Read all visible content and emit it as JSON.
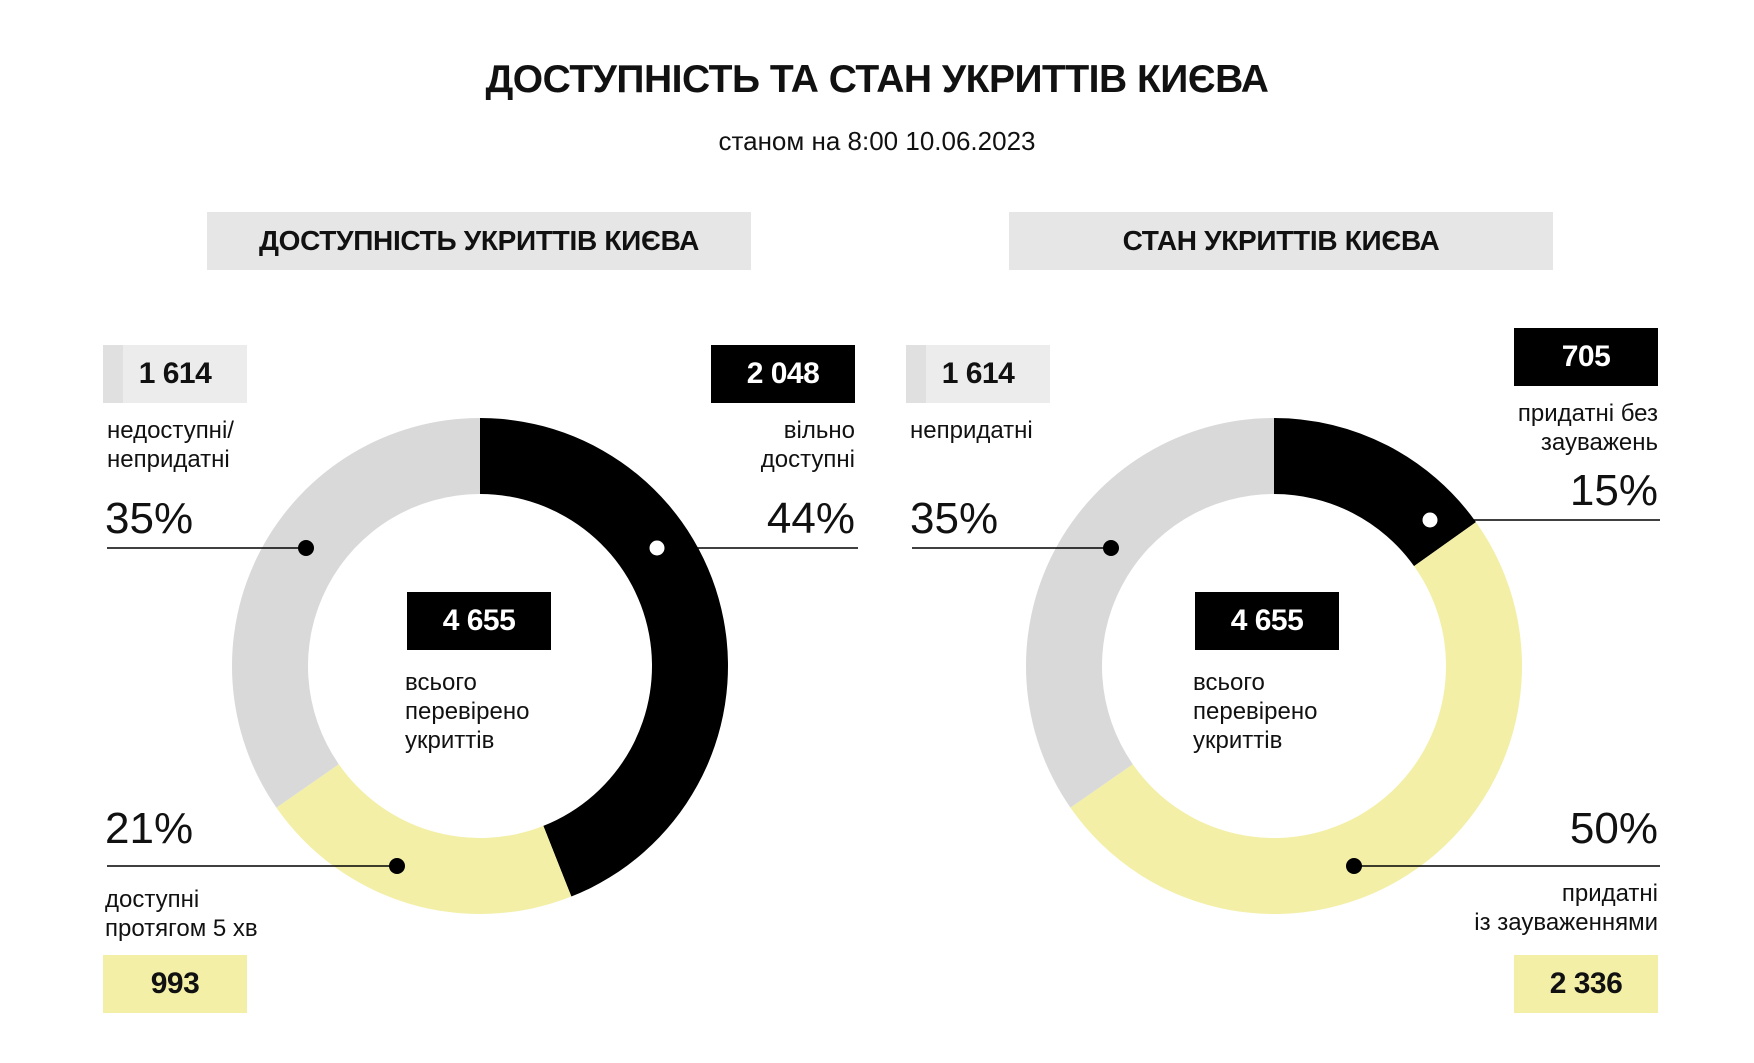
{
  "title": "ДОСТУПНІСТЬ ТА СТАН УКРИТТІВ КИЄВА",
  "subtitle": "станом на 8:00 10.06.2023",
  "colors": {
    "black": "#000000",
    "grey": "#d9d9d9",
    "yellow": "#f3efa7",
    "panel_bg": "#e6e6e6"
  },
  "chart_data": [
    {
      "type": "pie",
      "title": "ДОСТУПНІСТЬ УКРИТТІВ КИЄВА",
      "total": 4655,
      "total_label": "4 655",
      "center_text": "всього\nперевірено\nукриттів",
      "slices": [
        {
          "label": "вільно\nдоступні",
          "value": 2048,
          "value_label": "2 048",
          "percent": 44,
          "percent_label": "44%",
          "color": "#000000"
        },
        {
          "label": "доступні\nпротягом 5 хв",
          "value": 993,
          "value_label": "993",
          "percent": 21,
          "percent_label": "21%",
          "color": "#f3efa7"
        },
        {
          "label": "недоступні/\nнепридатні",
          "value": 1614,
          "value_label": "1 614",
          "percent": 35,
          "percent_label": "35%",
          "color": "#d9d9d9"
        }
      ]
    },
    {
      "type": "pie",
      "title": "СТАН УКРИТТІВ КИЄВА",
      "total": 4655,
      "total_label": "4 655",
      "center_text": "всього\nперевірено\nукриттів",
      "slices": [
        {
          "label": "придатні без\nзауважень",
          "value": 705,
          "value_label": "705",
          "percent": 15,
          "percent_label": "15%",
          "color": "#000000"
        },
        {
          "label": "придатні\nіз зауваженнями",
          "value": 2336,
          "value_label": "2 336",
          "percent": 50,
          "percent_label": "50%",
          "color": "#f3efa7"
        },
        {
          "label": "непридатні",
          "value": 1614,
          "value_label": "1 614",
          "percent": 35,
          "percent_label": "35%",
          "color": "#d9d9d9"
        }
      ]
    }
  ]
}
